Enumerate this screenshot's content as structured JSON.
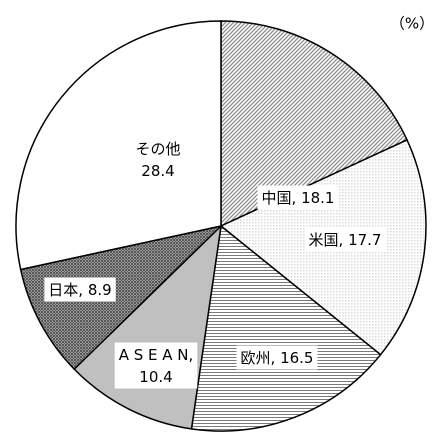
{
  "chart_data": {
    "type": "pie",
    "unit_label": "（%）",
    "categories": [
      "中国",
      "米国",
      "欧州",
      "ASEAN",
      "日本",
      "その他"
    ],
    "values": [
      18.1,
      17.7,
      16.5,
      10.4,
      8.9,
      28.4
    ],
    "value_labels": [
      "中国, 18.1",
      "米国, 17.7",
      "欧州, 16.5",
      "A S E A N,\n10.4",
      "日本, 8.9",
      "その他\n28.4"
    ],
    "colors": [
      "#8c8c8c",
      "#d9d9d9",
      "#7a7a7a",
      "#c0c0c0",
      "#555555",
      "#ffffff"
    ]
  }
}
